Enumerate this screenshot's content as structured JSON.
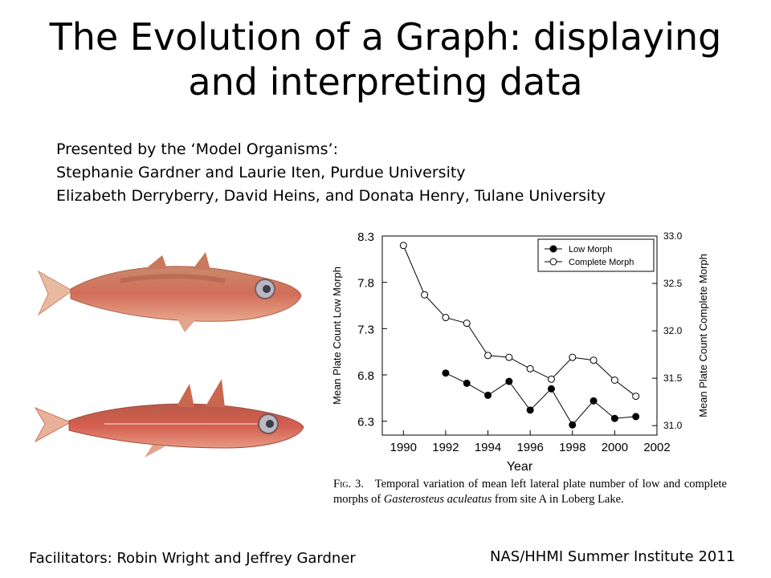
{
  "slide": {
    "title_line1": "The Evolution of a Graph: displaying",
    "title_line2": "and interpreting data",
    "presented_by": "Presented by the ‘Model Organisms’:",
    "presenters_1": "Stephanie Gardner and Laurie Iten, Purdue University",
    "presenters_2": "Elizabeth Derryberry, David Heins, and Donata Henry, Tulane University",
    "facilitators": "Facilitators:  Robin Wright and Jeffrey Gardner",
    "institute": "NAS/HHMI Summer Institute 2011"
  },
  "caption": {
    "fig_label": "Fig. 3.",
    "text_1": "Temporal variation of mean left lateral plate number of low and complete morphs of ",
    "species": "Gasterosteus aculeatus",
    "text_2": " from site A in Loberg Lake."
  },
  "chart_data": {
    "type": "line",
    "xlabel": "Year",
    "ylabel_left": "Mean Plate Count Low Morph",
    "ylabel_right": "Mean Plate Count Complete Morph",
    "xlim": [
      1989,
      2002
    ],
    "xticks": [
      "1990",
      "1992",
      "1994",
      "1996",
      "1998",
      "2000",
      "2002"
    ],
    "ylim_left": [
      6.15,
      8.3
    ],
    "yticks_left": [
      "8.3",
      "7.8",
      "7.3",
      "6.8",
      "6.3"
    ],
    "ylim_right": [
      30.9,
      33.0
    ],
    "yticks_right": [
      "33.0",
      "32.5",
      "32.0",
      "31.5",
      "31.0"
    ],
    "legend_position": "top-right",
    "series": [
      {
        "name": "Low Morph",
        "axis": "left",
        "marker": "filled-circle",
        "x": [
          1992,
          1993,
          1994,
          1995,
          1996,
          1997,
          1998,
          1999,
          2000,
          2001
        ],
        "y": [
          6.82,
          6.71,
          6.58,
          6.73,
          6.42,
          6.65,
          6.26,
          6.52,
          6.33,
          6.35
        ]
      },
      {
        "name": "Complete Morph",
        "axis": "right",
        "marker": "open-circle",
        "x": [
          1990,
          1991,
          1992,
          1993,
          1994,
          1995,
          1996,
          1997,
          1998,
          1999,
          2000,
          2001
        ],
        "y": [
          32.9,
          32.38,
          32.14,
          32.08,
          31.74,
          31.72,
          31.6,
          31.49,
          31.72,
          31.69,
          31.48,
          31.31
        ]
      }
    ]
  }
}
